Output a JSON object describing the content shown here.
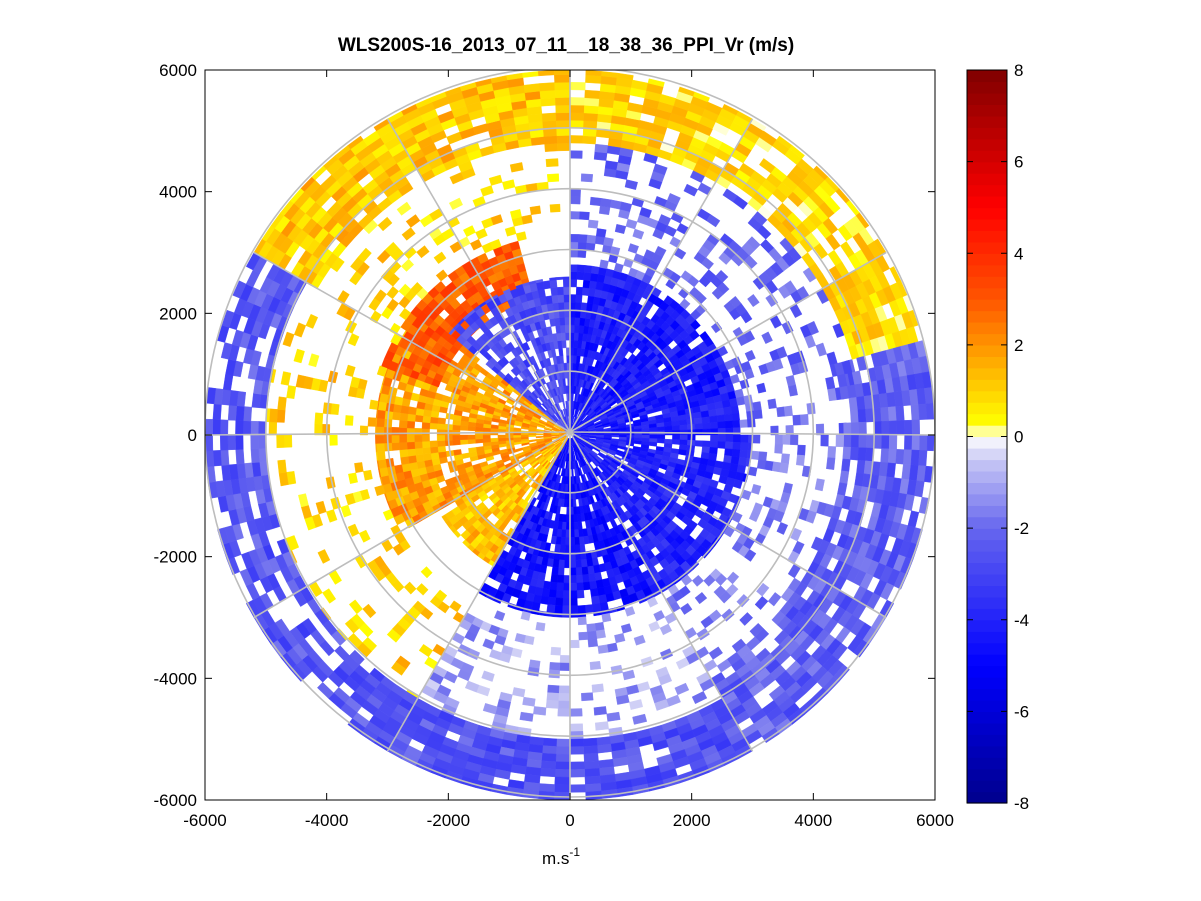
{
  "chart_data": {
    "type": "heatmap",
    "subtype": "polar-ppi-scan",
    "title": "WLS200S-16_2013_07_11__18_38_36_PPI_Vr (m/s)",
    "xlabel": "m.s",
    "xlabel_superscript": "-1",
    "ylabel": "",
    "xlim": [
      -6000,
      6000
    ],
    "ylim": [
      -6000,
      6000
    ],
    "xticks": [
      -6000,
      -4000,
      -2000,
      0,
      2000,
      4000,
      6000
    ],
    "yticks": [
      -6000,
      -4000,
      -2000,
      0,
      2000,
      4000,
      6000
    ],
    "xtick_labels": [
      "-6000",
      "-4000",
      "-2000",
      "0",
      "2000",
      "4000",
      "6000"
    ],
    "ytick_labels": [
      "-6000",
      "-4000",
      "-2000",
      "0",
      "2000",
      "4000",
      "6000"
    ],
    "max_range_m": 6000,
    "range_rings_m": [
      1000,
      2000,
      3000,
      4000,
      5000,
      6000
    ],
    "spokes_deg": [
      0,
      30,
      60,
      90,
      120,
      150,
      180,
      210,
      240,
      270,
      300,
      330
    ],
    "colorbar": {
      "min": -8,
      "max": 8,
      "ticks": [
        -8,
        -6,
        -4,
        -2,
        0,
        2,
        4,
        6,
        8
      ],
      "tick_labels": [
        "-8",
        "-6",
        "-4",
        "-2",
        "0",
        "2",
        "4",
        "6",
        "8"
      ],
      "stops": [
        {
          "v": -8,
          "color": "#00008c"
        },
        {
          "v": -5,
          "color": "#0000ff"
        },
        {
          "v": -2,
          "color": "#6666ee"
        },
        {
          "v": -0.5,
          "color": "#c8c8f4"
        },
        {
          "v": 0,
          "color": "#ffffff"
        },
        {
          "v": 0.3,
          "color": "#ffff00"
        },
        {
          "v": 1.5,
          "color": "#ffb400"
        },
        {
          "v": 3,
          "color": "#ff5500"
        },
        {
          "v": 5,
          "color": "#ff0000"
        },
        {
          "v": 8,
          "color": "#800000"
        }
      ]
    },
    "velocity_pattern_note": "approximate radial velocity field (m/s)",
    "sectors": [
      {
        "az_from": 0,
        "az_to": 90,
        "r_from": 0,
        "r_to": 2800,
        "value": -4.2,
        "density": 0.95
      },
      {
        "az_from": 0,
        "az_to": 90,
        "r_from": 2800,
        "r_to": 4800,
        "value": -2.2,
        "density": 0.35
      },
      {
        "az_from": 0,
        "az_to": 75,
        "r_from": 4800,
        "r_to": 6000,
        "value": 0.8,
        "density": 0.85
      },
      {
        "az_from": 75,
        "az_to": 150,
        "r_from": 4500,
        "r_to": 6000,
        "value": -2.3,
        "density": 0.85
      },
      {
        "az_from": 90,
        "az_to": 150,
        "r_from": 0,
        "r_to": 3000,
        "value": -4.0,
        "density": 0.9
      },
      {
        "az_from": 90,
        "az_to": 150,
        "r_from": 3000,
        "r_to": 4500,
        "value": -1.8,
        "density": 0.3
      },
      {
        "az_from": 150,
        "az_to": 210,
        "r_from": 0,
        "r_to": 3000,
        "value": -4.5,
        "density": 0.9
      },
      {
        "az_from": 150,
        "az_to": 210,
        "r_from": 3000,
        "r_to": 5000,
        "value": -1.2,
        "density": 0.3
      },
      {
        "az_from": 150,
        "az_to": 215,
        "r_from": 5000,
        "r_to": 6000,
        "value": -2.6,
        "density": 0.85
      },
      {
        "az_from": 210,
        "az_to": 240,
        "r_from": 0,
        "r_to": 2500,
        "value": 1.3,
        "density": 0.85
      },
      {
        "az_from": 240,
        "az_to": 310,
        "r_from": 0,
        "r_to": 3200,
        "value": 1.8,
        "density": 0.85
      },
      {
        "az_from": 290,
        "az_to": 345,
        "r_from": 2300,
        "r_to": 3300,
        "value": 3.0,
        "density": 0.9
      },
      {
        "az_from": 310,
        "az_to": 360,
        "r_from": 0,
        "r_to": 2600,
        "value": -2.8,
        "density": 0.8
      },
      {
        "az_from": 210,
        "az_to": 300,
        "r_from": 3200,
        "r_to": 5000,
        "value": 1.0,
        "density": 0.2
      },
      {
        "az_from": 195,
        "az_to": 300,
        "r_from": 5000,
        "r_to": 6000,
        "value": -2.5,
        "density": 0.75
      },
      {
        "az_from": 300,
        "az_to": 360,
        "r_from": 3300,
        "r_to": 4800,
        "value": 1.0,
        "density": 0.25
      },
      {
        "az_from": 300,
        "az_to": 360,
        "r_from": 4800,
        "r_to": 6000,
        "value": 1.2,
        "density": 0.9
      }
    ]
  }
}
